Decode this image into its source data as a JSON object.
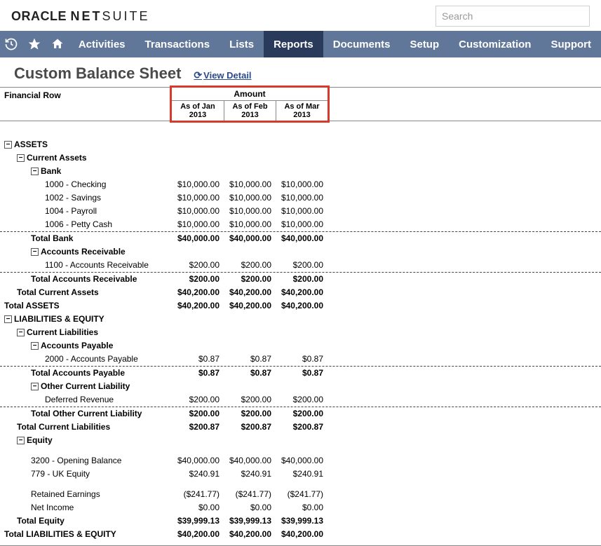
{
  "branding": {
    "oracle": "ORACLE",
    "net": "NET",
    "suite": "SUITE"
  },
  "search": {
    "placeholder": "Search"
  },
  "nav": {
    "items": [
      {
        "label": "Activities"
      },
      {
        "label": "Transactions"
      },
      {
        "label": "Lists"
      },
      {
        "label": "Reports",
        "active": true
      },
      {
        "label": "Documents"
      },
      {
        "label": "Setup"
      },
      {
        "label": "Customization"
      },
      {
        "label": "Support"
      }
    ]
  },
  "page": {
    "title": "Custom Balance Sheet",
    "view_detail": "View Detail"
  },
  "columns": {
    "financial_row": "Financial Row",
    "amount_group": "Amount",
    "periods": [
      "As of Jan 2013",
      "As of Feb 2013",
      "As of Mar 2013"
    ]
  },
  "rows": [
    {
      "type": "section",
      "level": 0,
      "collapse": true,
      "label": "ASSETS"
    },
    {
      "type": "section",
      "level": 1,
      "collapse": true,
      "label": "Current Assets"
    },
    {
      "type": "section",
      "level": 2,
      "collapse": true,
      "label": "Bank"
    },
    {
      "type": "item",
      "level": 3,
      "label": "1000 - Checking",
      "vals": [
        "$10,000.00",
        "$10,000.00",
        "$10,000.00"
      ]
    },
    {
      "type": "item",
      "level": 3,
      "label": "1002 - Savings",
      "vals": [
        "$10,000.00",
        "$10,000.00",
        "$10,000.00"
      ]
    },
    {
      "type": "item",
      "level": 3,
      "label": "1004 - Payroll",
      "vals": [
        "$10,000.00",
        "$10,000.00",
        "$10,000.00"
      ]
    },
    {
      "type": "item",
      "level": 3,
      "label": "1006 - Petty Cash",
      "vals": [
        "$10,000.00",
        "$10,000.00",
        "$10,000.00"
      ]
    },
    {
      "type": "total",
      "level": 2,
      "label": "Total Bank",
      "vals": [
        "$40,000.00",
        "$40,000.00",
        "$40,000.00"
      ]
    },
    {
      "type": "section",
      "level": 2,
      "collapse": true,
      "label": "Accounts Receivable"
    },
    {
      "type": "item",
      "level": 3,
      "label": "1100 - Accounts Receivable",
      "vals": [
        "$200.00",
        "$200.00",
        "$200.00"
      ]
    },
    {
      "type": "total",
      "level": 2,
      "label": "Total Accounts Receivable",
      "vals": [
        "$200.00",
        "$200.00",
        "$200.00"
      ]
    },
    {
      "type": "boldrow",
      "level": 1,
      "label": "Total Current Assets",
      "vals": [
        "$40,200.00",
        "$40,200.00",
        "$40,200.00"
      ]
    },
    {
      "type": "boldrow",
      "level": 0,
      "label": "Total ASSETS",
      "vals": [
        "$40,200.00",
        "$40,200.00",
        "$40,200.00"
      ]
    },
    {
      "type": "section",
      "level": 0,
      "collapse": true,
      "label": "LIABILITIES & EQUITY"
    },
    {
      "type": "section",
      "level": 1,
      "collapse": true,
      "label": "Current Liabilities"
    },
    {
      "type": "section",
      "level": 2,
      "collapse": true,
      "label": "Accounts Payable"
    },
    {
      "type": "item",
      "level": 3,
      "label": "2000 - Accounts Payable",
      "vals": [
        "$0.87",
        "$0.87",
        "$0.87"
      ]
    },
    {
      "type": "total",
      "level": 2,
      "label": "Total Accounts Payable",
      "vals": [
        "$0.87",
        "$0.87",
        "$0.87"
      ]
    },
    {
      "type": "section",
      "level": 2,
      "collapse": true,
      "label": "Other Current Liability"
    },
    {
      "type": "item",
      "level": 3,
      "label": "Deferred Revenue",
      "vals": [
        "$200.00",
        "$200.00",
        "$200.00"
      ]
    },
    {
      "type": "total",
      "level": 2,
      "label": "Total Other Current Liability",
      "vals": [
        "$200.00",
        "$200.00",
        "$200.00"
      ]
    },
    {
      "type": "boldrow",
      "level": 1,
      "label": "Total Current Liabilities",
      "vals": [
        "$200.87",
        "$200.87",
        "$200.87"
      ]
    },
    {
      "type": "section",
      "level": 1,
      "collapse": true,
      "label": "Equity"
    },
    {
      "type": "spacer"
    },
    {
      "type": "item",
      "level": 2,
      "label": "3200 - Opening Balance",
      "vals": [
        "$40,000.00",
        "$40,000.00",
        "$40,000.00"
      ]
    },
    {
      "type": "item",
      "level": 2,
      "label": "779 - UK Equity",
      "vals": [
        "$240.91",
        "$240.91",
        "$240.91"
      ]
    },
    {
      "type": "spacer"
    },
    {
      "type": "item",
      "level": 2,
      "label": "Retained Earnings",
      "vals": [
        "($241.77)",
        "($241.77)",
        "($241.77)"
      ]
    },
    {
      "type": "item",
      "level": 2,
      "label": "Net Income",
      "vals": [
        "$0.00",
        "$0.00",
        "$0.00"
      ]
    },
    {
      "type": "boldrow",
      "level": 1,
      "label": "Total Equity",
      "vals": [
        "$39,999.13",
        "$39,999.13",
        "$39,999.13"
      ]
    },
    {
      "type": "boldrow",
      "level": 0,
      "label": "Total LIABILITIES & EQUITY",
      "vals": [
        "$40,200.00",
        "$40,200.00",
        "$40,200.00"
      ]
    }
  ]
}
